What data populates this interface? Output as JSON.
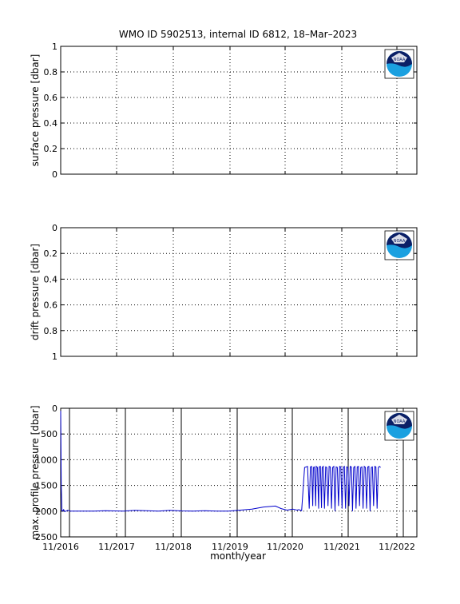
{
  "title": "WMO ID 5902513, internal ID 6812, 18–Mar–2023",
  "logo": {
    "text": "NOAA",
    "colors": {
      "navy": "#0b1f66",
      "cyan": "#1aa0e0"
    }
  },
  "colors": {
    "trace": "#0000cc",
    "axis": "#000000",
    "grid": "#000000"
  },
  "x_axis": {
    "label": "month/year",
    "tick_labels": [
      "11/2016",
      "11/2017",
      "11/2018",
      "11/2019",
      "11/2020",
      "11/2021",
      "11/2022"
    ]
  },
  "chart_data": [
    {
      "type": "line",
      "ylabel": "surface pressure [dbar]",
      "ylim": [
        0,
        1
      ],
      "y_reversed": false,
      "yticks": [
        "0",
        "0.2",
        "0.4",
        "0.6",
        "0.8",
        "1"
      ],
      "grid": true,
      "series": []
    },
    {
      "type": "line",
      "ylabel": "drift pressure [dbar]",
      "ylim": [
        0,
        1
      ],
      "y_reversed": true,
      "yticks": [
        "0",
        "0.2",
        "0.4",
        "0.6",
        "0.8",
        "1"
      ],
      "grid": true,
      "series": []
    },
    {
      "type": "line",
      "ylabel": "max. profile pressure [dbar]",
      "ylim": [
        0,
        2500
      ],
      "y_reversed": true,
      "yticks": [
        "0",
        "500",
        "1000",
        "1500",
        "2000",
        "2500"
      ],
      "grid": true,
      "xlim": [
        2016.83,
        2022.92
      ],
      "vertical_markers": [
        2016.95,
        2017.93,
        2018.92,
        2019.92,
        2020.92,
        2021.92,
        2022.92
      ],
      "series": [
        {
          "x": [
            2016.83,
            2016.84,
            2016.85,
            2016.86,
            2016.88,
            2016.9,
            2016.95,
            2017.0,
            2017.2,
            2017.4,
            2017.6,
            2017.9,
            2018.1,
            2018.3,
            2018.5,
            2018.7,
            2018.9,
            2019.1,
            2019.3,
            2019.5,
            2019.7,
            2019.9,
            2020.1,
            2020.3,
            2020.5,
            2020.6,
            2020.7,
            2020.8,
            2020.87,
            2020.9,
            2020.95,
            2021.0,
            2021.05,
            2021.08,
            2021.1,
            2021.12,
            2021.14,
            2021.15,
            2021.17,
            2021.19,
            2021.2,
            2021.22,
            2021.24,
            2021.25,
            2021.27,
            2021.29,
            2021.3,
            2021.32,
            2021.34,
            2021.36,
            2021.38,
            2021.4,
            2021.42,
            2021.44,
            2021.46,
            2021.48,
            2021.5,
            2021.52,
            2021.54,
            2021.56,
            2021.58,
            2021.6,
            2021.62,
            2021.64,
            2021.66,
            2021.68,
            2021.7,
            2021.72,
            2021.74,
            2021.76,
            2021.78,
            2021.8,
            2021.82,
            2021.84,
            2021.86,
            2021.88,
            2021.9,
            2021.92,
            2021.94,
            2021.96,
            2021.98,
            2022.0,
            2022.02,
            2022.04,
            2022.06,
            2022.08,
            2022.1,
            2022.12,
            2022.14,
            2022.16,
            2022.18,
            2022.2,
            2022.22,
            2022.24,
            2022.26,
            2022.28,
            2022.3
          ],
          "y": [
            50,
            1500,
            1980,
            2000,
            1970,
            2010,
            1985,
            2000,
            2000,
            2000,
            1990,
            2000,
            1985,
            1990,
            2000,
            1985,
            1995,
            2000,
            1990,
            2000,
            2000,
            1980,
            1960,
            1920,
            1900,
            1950,
            1980,
            1960,
            1980,
            1970,
            1990,
            1150,
            1130,
            1950,
            1140,
            1130,
            1900,
            1150,
            1140,
            1900,
            1130,
            1150,
            1950,
            1140,
            1130,
            1940,
            1150,
            1130,
            1950,
            1140,
            1150,
            1900,
            1130,
            1140,
            1950,
            1150,
            1130,
            2000,
            1140,
            1150,
            1900,
            1130,
            1140,
            1950,
            1150,
            1130,
            1950,
            1140,
            1150,
            1900,
            1130,
            1140,
            2000,
            1150,
            1130,
            1950,
            1140,
            1130,
            1900,
            1150,
            1140,
            1950,
            1130,
            1150,
            1950,
            1140,
            1130,
            2000,
            1150,
            1140,
            1900,
            1130,
            1140,
            1950,
            1150,
            1130,
            1150
          ],
          "note_x_units": "decimal year"
        }
      ]
    }
  ]
}
